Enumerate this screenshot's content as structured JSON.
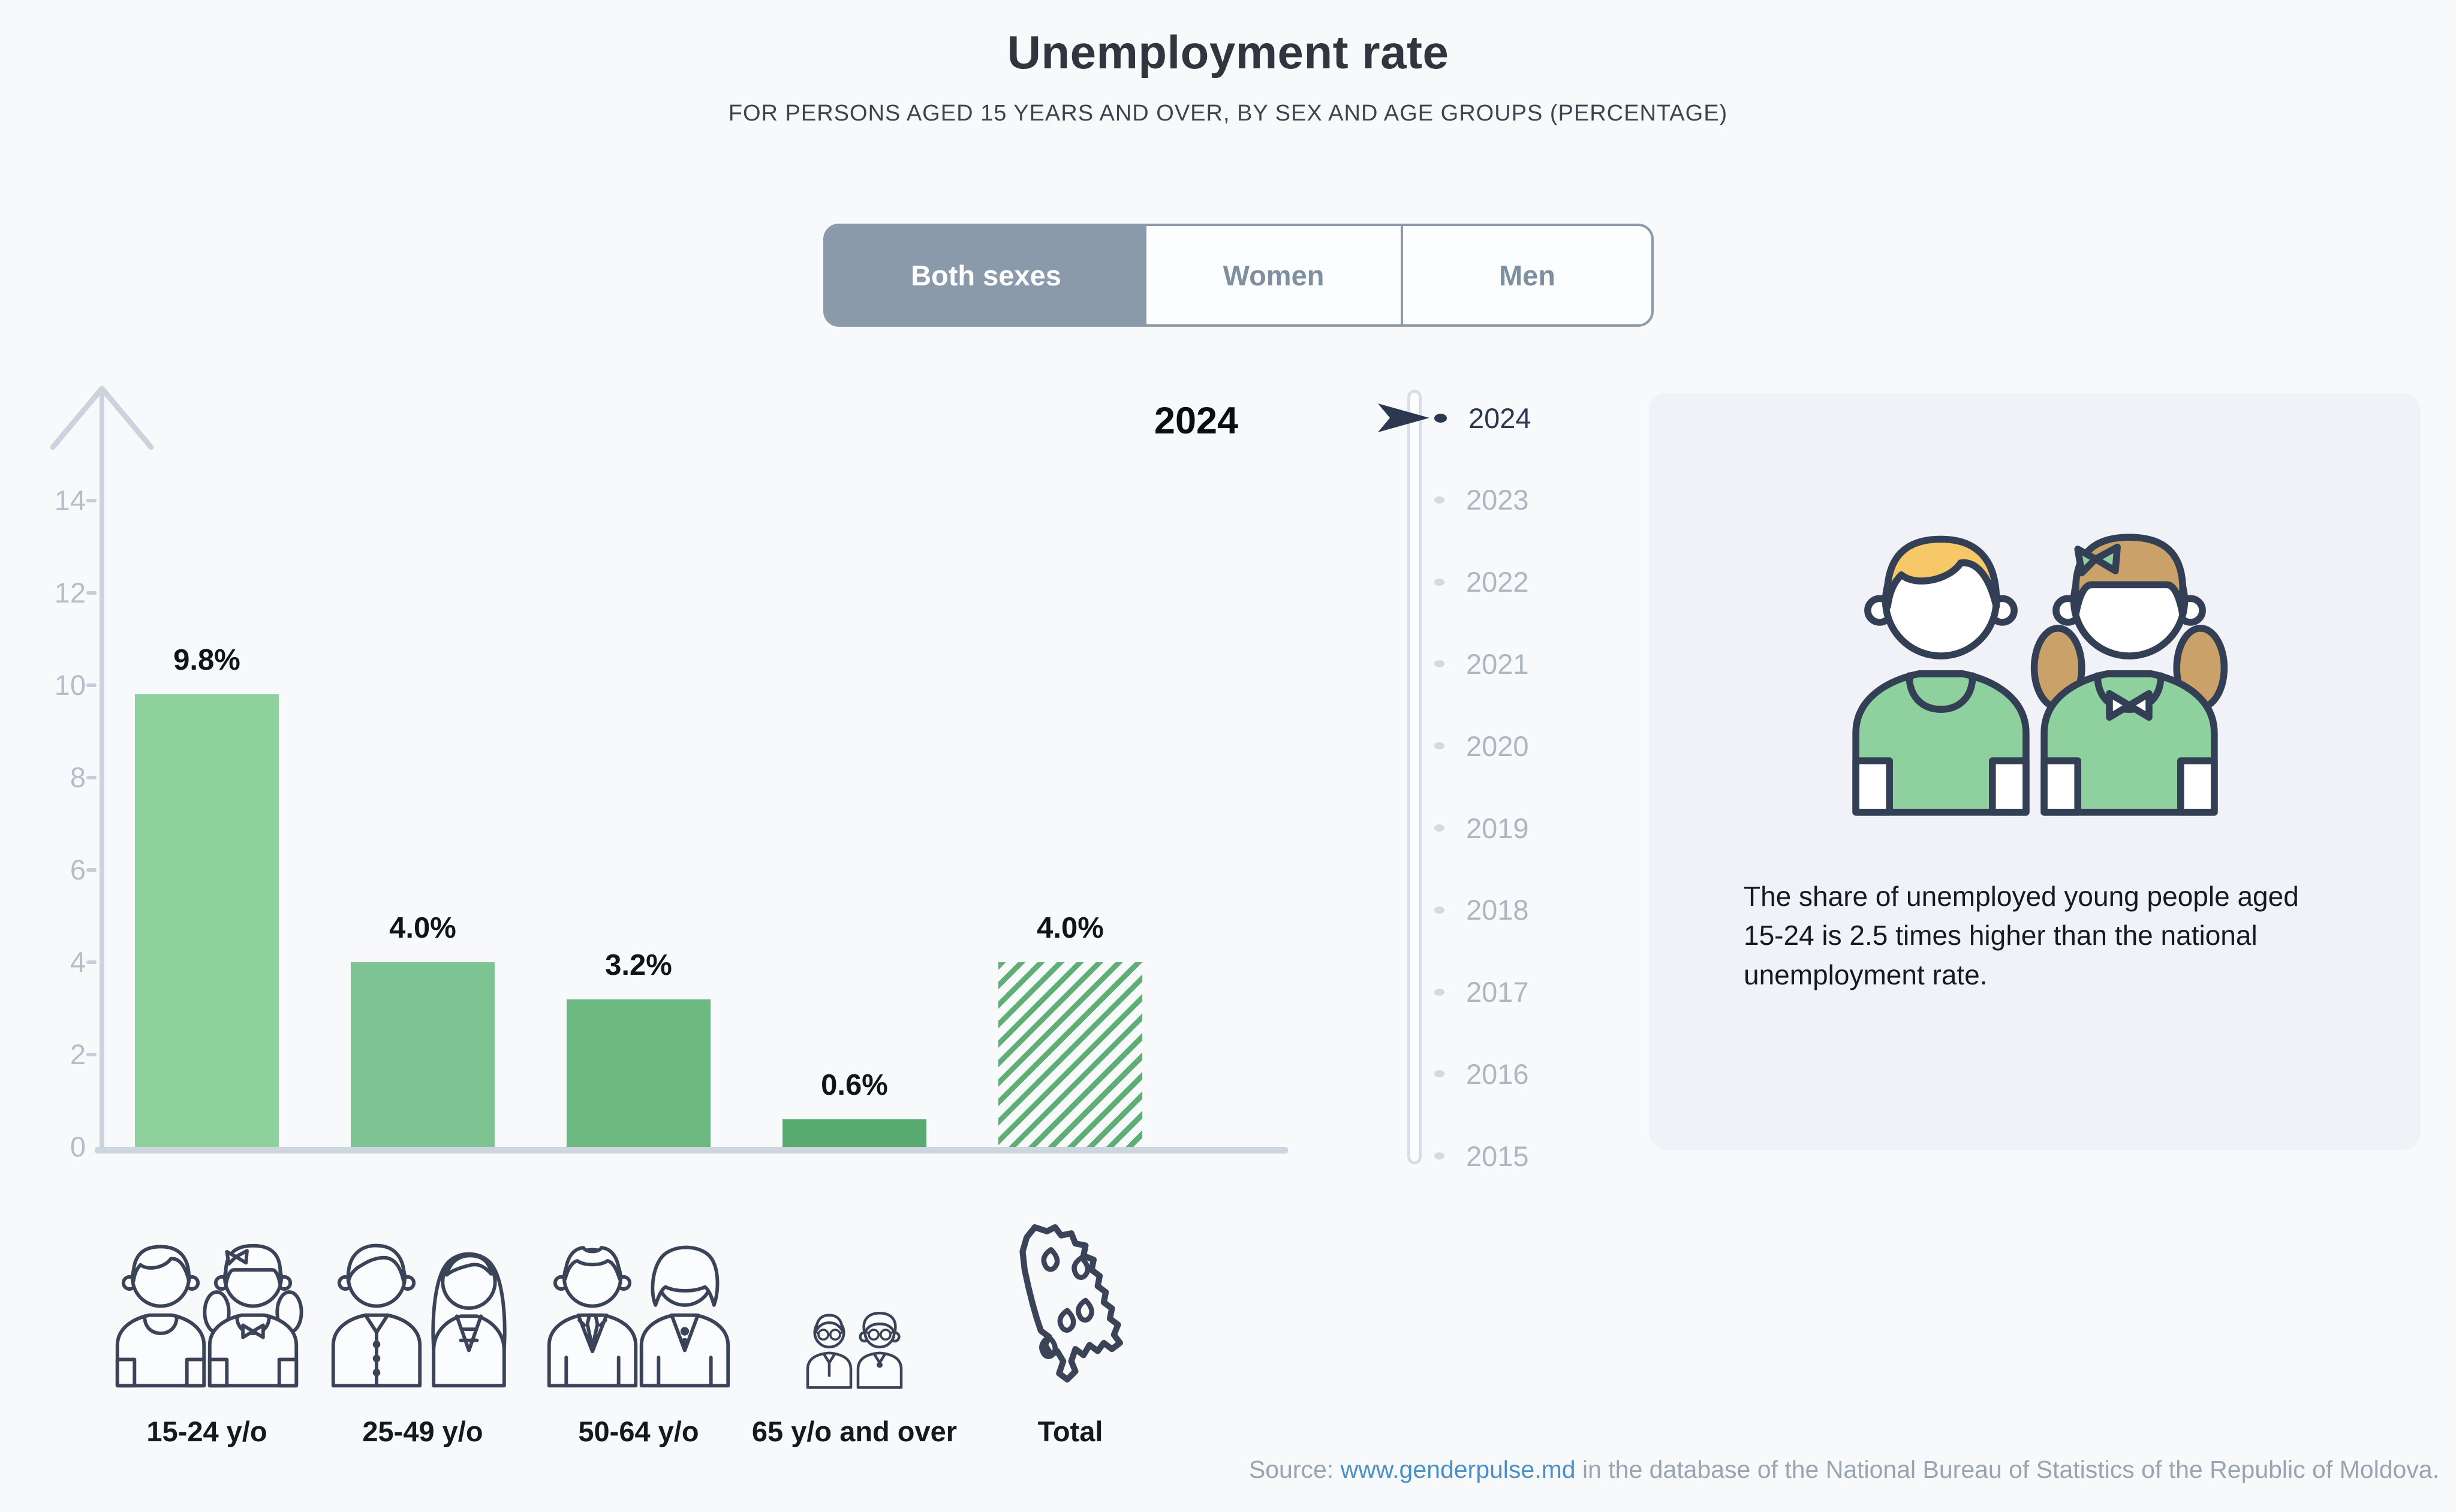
{
  "page": {
    "background": "#f8f9fb"
  },
  "header": {
    "title": "Unemployment rate",
    "subtitle": "FOR PERSONS AGED 15 YEARS AND OVER, BY SEX AND AGE GROUPS (PERCENTAGE)"
  },
  "tabs": [
    {
      "label": "Both sexes",
      "selected": true
    },
    {
      "label": "Women",
      "selected": false
    },
    {
      "label": "Men",
      "selected": false
    }
  ],
  "chart_data": {
    "type": "bar",
    "title": "2024",
    "categories": [
      "15-24 y/o",
      "25-49 y/o",
      "50-64 y/o",
      "65 y/o and over",
      "Total"
    ],
    "values": [
      9.8,
      4.0,
      3.2,
      0.6,
      4.0
    ],
    "value_labels": [
      "9.8%",
      "4.0%",
      "3.2%",
      "0.6%",
      "4.0%"
    ],
    "ylabel": "",
    "xlabel": "",
    "ylim": [
      0,
      14
    ],
    "yticks": [
      0,
      2,
      4,
      6,
      8,
      10,
      12,
      14
    ],
    "grid": false,
    "bar_colors": [
      "#8fd19d",
      "#7ec492",
      "#6bb980",
      "#58aa70",
      "#5fae75"
    ],
    "hatched_bar_index": 4,
    "category_icons": [
      "young-pair-icon",
      "adult-pair-icon",
      "senior-pair-icon",
      "elderly-pair-icon",
      "moldova-map-icon"
    ]
  },
  "timeline": {
    "years": [
      "2024",
      "2023",
      "2022",
      "2021",
      "2020",
      "2019",
      "2018",
      "2017",
      "2016",
      "2015"
    ],
    "selected_year": "2024"
  },
  "info_card": {
    "text": "The share of unemployed young people aged 15-24 is 2.5 times higher than the national unemployment rate."
  },
  "source": {
    "prefix": "Source: ",
    "link_text": "www.genderpulse.md",
    "suffix": " in the database of the National Bureau of Statistics of the Republic of Moldova."
  },
  "palette": {
    "accent_navy": "#2c3850",
    "icon_outline": "#3a4358",
    "tab_fill": "#8b9aab",
    "link_blue": "#4a8fc7",
    "axis_gray": "#ccd3dc",
    "shirt_green": "#8fd19e",
    "hair_yellow": "#f6c868",
    "hair_brown": "#c9a169",
    "hatch_green": "#5fae75"
  }
}
